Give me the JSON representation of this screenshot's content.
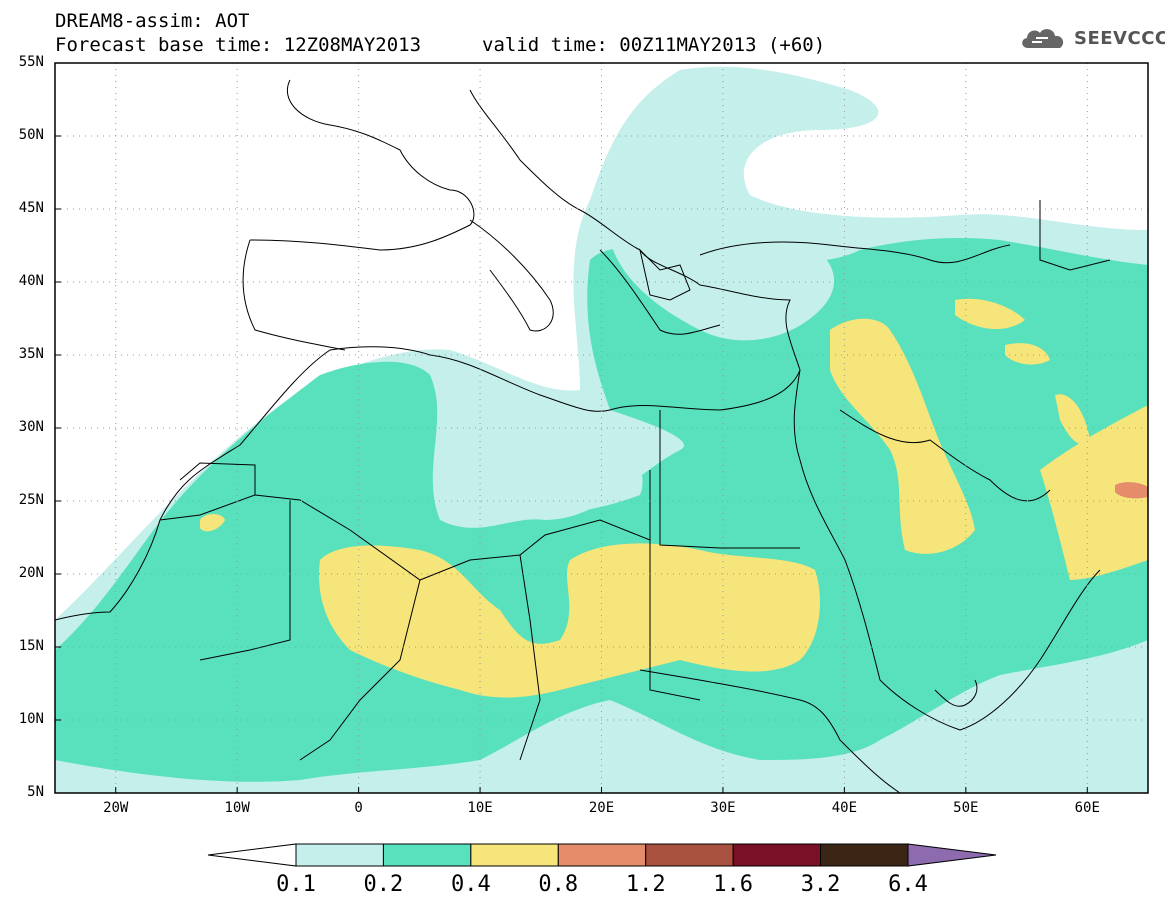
{
  "header": {
    "title": "DREAM8-assim: AOT",
    "base_time": "Forecast base time: 12Z08MAY2013",
    "valid_time": "valid time: 00Z11MAY2013 (+60)",
    "logo_text": "SEEVCCC",
    "logo_icon": "cloud-icon"
  },
  "map": {
    "lat_labels": [
      "55N",
      "50N",
      "45N",
      "40N",
      "35N",
      "30N",
      "25N",
      "20N",
      "15N",
      "10N",
      "5N"
    ],
    "lon_labels": [
      "20W",
      "10W",
      "0",
      "10E",
      "20E",
      "30E",
      "40E",
      "50E",
      "60E"
    ],
    "grid": "dotted",
    "coastlines": true
  },
  "colorbar": {
    "labels": [
      "0.1",
      "0.2",
      "0.4",
      "0.8",
      "1.2",
      "1.6",
      "3.2",
      "6.4"
    ],
    "colors": [
      "#ffffff",
      "#c4efea",
      "#59e1bd",
      "#f5e57a",
      "#e58c6a",
      "#a8513f",
      "#7a0f28",
      "#3b2616",
      "#8e6aae"
    ],
    "extend": "both"
  }
}
